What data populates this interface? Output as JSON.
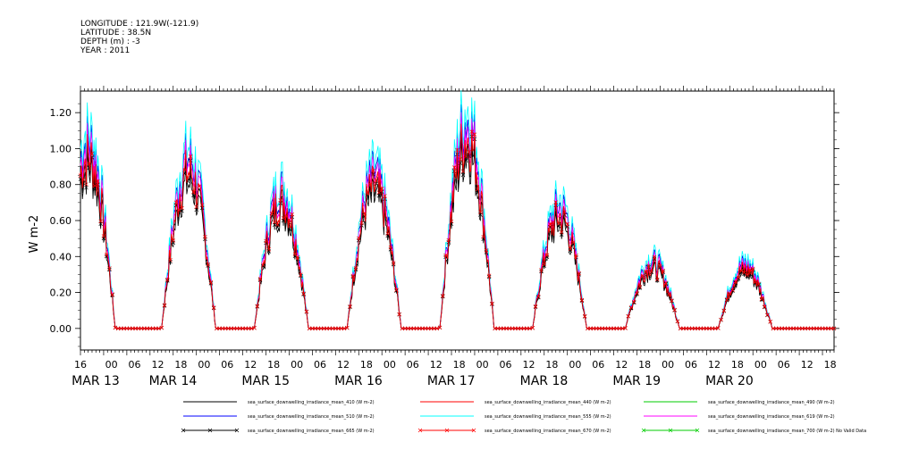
{
  "header": {
    "longitude": "LONGITUDE : 121.9W(-121.9)",
    "latitude": "LATITUDE : 38.5N",
    "depth": "DEPTH (m) : -3",
    "year": "YEAR : 2011"
  },
  "chart_data": {
    "type": "line",
    "title": "",
    "xlabel": "",
    "ylabel": "W m-2",
    "ylim": [
      -0.12,
      1.32
    ],
    "yticks": [
      0.0,
      0.2,
      0.4,
      0.6,
      0.8,
      1.0,
      1.2
    ],
    "ytick_labels": [
      "0.00",
      "0.20",
      "0.40",
      "0.60",
      "0.80",
      "1.00",
      "1.20"
    ],
    "xlim_hours": [
      0,
      192
    ],
    "xtick_hour_labels": [
      {
        "h": 0,
        "label": "16"
      },
      {
        "h": 8,
        "label": "00"
      },
      {
        "h": 14,
        "label": "06"
      },
      {
        "h": 20,
        "label": "12"
      },
      {
        "h": 26,
        "label": "18"
      },
      {
        "h": 32,
        "label": "00"
      },
      {
        "h": 38,
        "label": "06"
      },
      {
        "h": 44,
        "label": "12"
      },
      {
        "h": 50,
        "label": "18"
      },
      {
        "h": 56,
        "label": "00"
      },
      {
        "h": 62,
        "label": "06"
      },
      {
        "h": 68,
        "label": "12"
      },
      {
        "h": 74,
        "label": "18"
      },
      {
        "h": 80,
        "label": "00"
      },
      {
        "h": 86,
        "label": "06"
      },
      {
        "h": 92,
        "label": "12"
      },
      {
        "h": 98,
        "label": "18"
      },
      {
        "h": 104,
        "label": "00"
      },
      {
        "h": 110,
        "label": "06"
      },
      {
        "h": 116,
        "label": "12"
      },
      {
        "h": 122,
        "label": "18"
      },
      {
        "h": 128,
        "label": "00"
      },
      {
        "h": 134,
        "label": "06"
      },
      {
        "h": 140,
        "label": "12"
      },
      {
        "h": 146,
        "label": "18"
      },
      {
        "h": 152,
        "label": "00"
      },
      {
        "h": 158,
        "label": "06"
      },
      {
        "h": 164,
        "label": "12"
      },
      {
        "h": 170,
        "label": "18"
      },
      {
        "h": 176,
        "label": "00"
      },
      {
        "h": 182,
        "label": "06"
      },
      {
        "h": 188,
        "label": "12"
      },
      {
        "h": 194,
        "label": "18"
      }
    ],
    "date_labels": [
      {
        "h": 0,
        "label": "MAR 13"
      },
      {
        "h": 20,
        "label": "MAR 14"
      },
      {
        "h": 44,
        "label": "MAR 15"
      },
      {
        "h": 68,
        "label": "MAR 16"
      },
      {
        "h": 92,
        "label": "MAR 17"
      },
      {
        "h": 116,
        "label": "MAR 18"
      },
      {
        "h": 140,
        "label": "MAR 19"
      },
      {
        "h": 164,
        "label": "MAR 20"
      }
    ],
    "daily_peaks": [
      {
        "center_h": 2,
        "peak": 1.1
      },
      {
        "center_h": 28,
        "peak": 1.0
      },
      {
        "center_h": 52,
        "peak": 0.82
      },
      {
        "center_h": 76,
        "peak": 0.9
      },
      {
        "center_h": 100,
        "peak": 1.22
      },
      {
        "center_h": 124,
        "peak": 0.72
      },
      {
        "center_h": 148,
        "peak": 0.4
      },
      {
        "center_h": 172,
        "peak": 0.38
      }
    ],
    "series": [
      {
        "name": "sea_surface_downwelling_irradiance_mean_410 (W m-2)",
        "color": "#000000",
        "scale": 0.8,
        "marker": "none"
      },
      {
        "name": "sea_surface_downwelling_irradiance_mean_440 (W m-2)",
        "color": "#ff0000",
        "scale": 0.86,
        "marker": "none"
      },
      {
        "name": "sea_surface_downwelling_irradiance_mean_490 (W m-2)",
        "color": "#00cc00",
        "scale": 0.93,
        "marker": "none"
      },
      {
        "name": "sea_surface_downwelling_irradiance_mean_510 (W m-2)",
        "color": "#0000ff",
        "scale": 0.95,
        "marker": "none"
      },
      {
        "name": "sea_surface_downwelling_irradiance_mean_555 (W m-2)",
        "color": "#00ffff",
        "scale": 1.0,
        "marker": "none"
      },
      {
        "name": "sea_surface_downwelling_irradiance_mean_619 (W m-2)",
        "color": "#ff00ff",
        "scale": 0.9,
        "marker": "none"
      },
      {
        "name": "sea_surface_downwelling_irradiance_mean_665 (W m-2)",
        "color": "#000000",
        "scale": 0.84,
        "marker": "x"
      },
      {
        "name": "sea_surface_downwelling_irradiance_mean_670 (W m-2)",
        "color": "#ff0000",
        "scale": 0.86,
        "marker": "x"
      },
      {
        "name": "sea_surface_downwelling_irradiance_mean_700 (W m-2) No Valid Data",
        "color": "#00cc00",
        "scale": 0,
        "marker": "x"
      }
    ]
  }
}
